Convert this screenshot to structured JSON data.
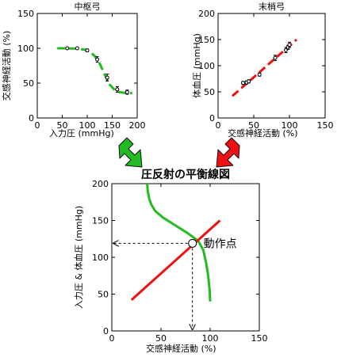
{
  "arrow_colors": {
    "left": "#22bb22",
    "right": "#ee1111"
  },
  "chart_data": [
    {
      "type": "line",
      "title": "中枢弓",
      "xlabel": "入力圧 (mmHg)",
      "ylabel": "交感神経活動 (%)",
      "xlim": [
        0,
        200
      ],
      "ylim": [
        0,
        150
      ],
      "xticks": [
        "0",
        "50",
        "100",
        "150",
        "200"
      ],
      "yticks": [
        "0",
        "50",
        "100",
        "150"
      ],
      "grid": false,
      "series": [
        {
          "style": "dashed",
          "color": "#22bb22",
          "x": [
            40,
            60,
            80,
            95,
            105,
            115,
            125,
            135,
            145,
            155,
            165,
            175,
            190
          ],
          "y": [
            100,
            100,
            99.5,
            98,
            95,
            89,
            78,
            62,
            48,
            40,
            37,
            36,
            35.5
          ]
        },
        {
          "type": "scatter",
          "marker": "open-circle-errorbar",
          "x": [
            60,
            80,
            100,
            120,
            140,
            160,
            180
          ],
          "y": [
            100,
            100,
            97,
            84,
            58,
            41,
            37
          ],
          "yerr": [
            1,
            1,
            2,
            4,
            5,
            4,
            3
          ]
        }
      ]
    },
    {
      "type": "line",
      "title": "末梢弓",
      "xlabel": "交感神経活動 (%)",
      "ylabel": "体血圧 (mmHg)",
      "xlim": [
        0,
        150
      ],
      "ylim": [
        0,
        200
      ],
      "xticks": [
        "0",
        "50",
        "100",
        "150"
      ],
      "yticks": [
        "0",
        "50",
        "100",
        "150",
        "200"
      ],
      "grid": false,
      "series": [
        {
          "style": "dashed",
          "color": "#ee1111",
          "x": [
            20,
            110
          ],
          "y": [
            42,
            150
          ]
        },
        {
          "type": "scatter",
          "marker": "open-circle-errorbar",
          "x": [
            35,
            40,
            43,
            58,
            80,
            95,
            98,
            100
          ],
          "y": [
            67,
            68,
            70,
            83,
            115,
            130,
            135,
            140
          ],
          "yerr": [
            3,
            3,
            3,
            3,
            5,
            5,
            4,
            5
          ]
        }
      ]
    },
    {
      "type": "line",
      "title": "圧反射の平衡線図",
      "xlabel": "交感神経活動 (%)",
      "ylabel": "入力圧 & 体血圧 (mmHg)",
      "xlim": [
        0,
        150
      ],
      "ylim": [
        0,
        200
      ],
      "xticks": [
        "0",
        "50",
        "100",
        "150"
      ],
      "yticks": [
        "0",
        "50",
        "100",
        "150",
        "200"
      ],
      "grid": false,
      "series": [
        {
          "style": "solid",
          "color": "#22bb22",
          "x": [
            36,
            36.5,
            38,
            40,
            44,
            52,
            65,
            78,
            88,
            93,
            96,
            98,
            99.5,
            100
          ],
          "y": [
            200,
            190,
            180,
            172,
            163,
            154,
            143,
            132,
            122,
            110,
            92,
            75,
            55,
            40
          ]
        },
        {
          "style": "solid",
          "color": "#ee1111",
          "x": [
            20,
            110
          ],
          "y": [
            42,
            150
          ]
        }
      ],
      "operating_point": {
        "x": 82,
        "y": 119,
        "label": "動作点"
      }
    }
  ]
}
